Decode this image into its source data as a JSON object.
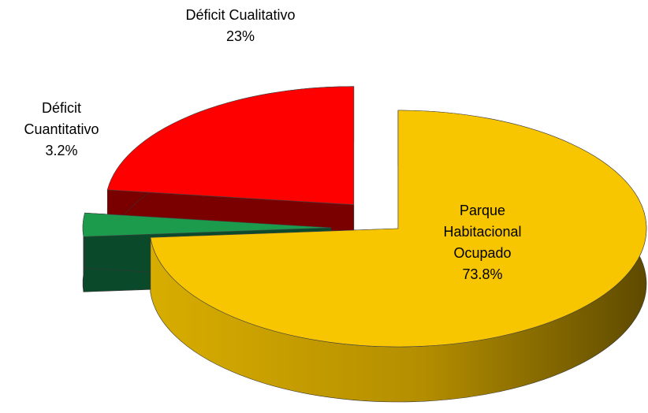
{
  "chart_data": {
    "type": "pie",
    "categories": [
      "Parque Habitacional Ocupado",
      "Déficit Cuantitativo",
      "Déficit Cualitativo"
    ],
    "values": [
      73.8,
      3.2,
      23
    ],
    "value_labels": [
      "73.8%",
      "3.2%",
      "23%"
    ],
    "colors": [
      "#f8c600",
      "#1d9b4c",
      "#ff0000"
    ]
  }
}
